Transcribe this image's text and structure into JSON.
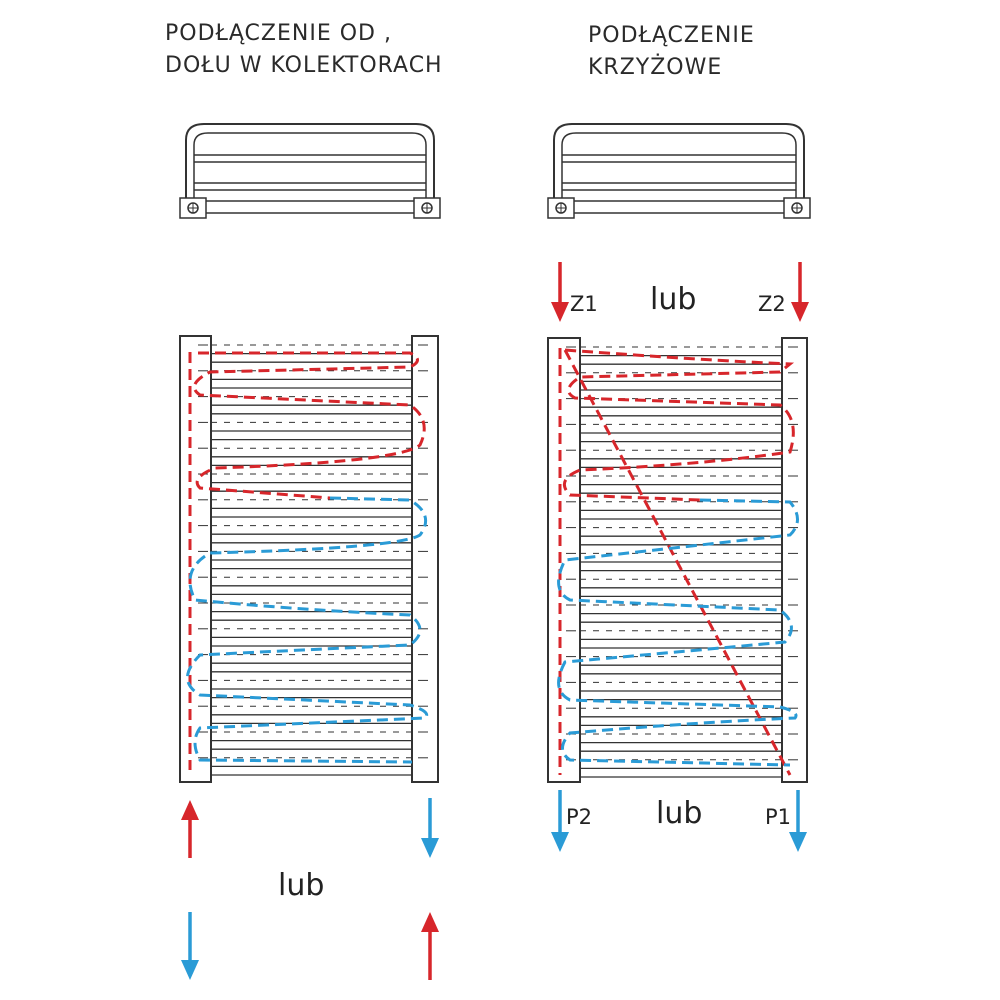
{
  "colors": {
    "supply": "#d7262b",
    "return": "#2a9bd6",
    "outline": "#333333"
  },
  "left_panel": {
    "title_line1": "PODŁĄCZENIE OD ,",
    "title_line2": "DOŁU W KOLEKTORACH",
    "or_label": "lub"
  },
  "right_panel": {
    "title_line1": "PODŁĄCZENIE",
    "title_line2": "KRZYŻOWE",
    "top_or_label": "lub",
    "bottom_or_label": "lub",
    "z1": "Z1",
    "z2": "Z2",
    "p1": "P1",
    "p2": "P2"
  }
}
